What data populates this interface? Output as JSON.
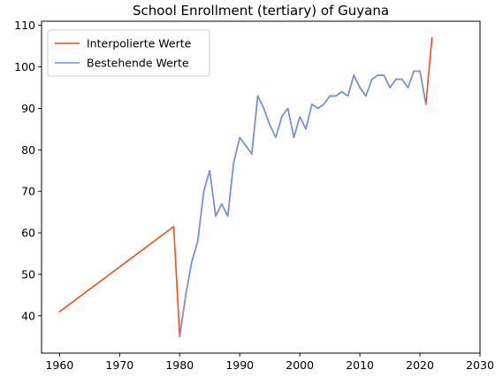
{
  "chart_data": {
    "type": "line",
    "title": "School Enrollment (tertiary) of Guyana",
    "xlabel": "",
    "ylabel": "",
    "xlim": [
      1957,
      2030
    ],
    "ylim": [
      31,
      111
    ],
    "xticks": [
      1960,
      1970,
      1980,
      1990,
      2000,
      2010,
      2020,
      2030
    ],
    "yticks": [
      40,
      50,
      60,
      70,
      80,
      90,
      100,
      110
    ],
    "grid": false,
    "legend_position": "upper left",
    "series": [
      {
        "name": "Interpolierte Werte",
        "color": "#f04e1a",
        "x": [
          1960,
          1979,
          1980,
          1981,
          1982,
          1983,
          1984,
          1985,
          1986,
          1987,
          1988,
          1989,
          1990,
          1991,
          1992,
          1993,
          1994,
          1995,
          1996,
          1997,
          1998,
          1999,
          2000,
          2001,
          2002,
          2003,
          2004,
          2005,
          2006,
          2007,
          2008,
          2009,
          2010,
          2011,
          2012,
          2013,
          2014,
          2015,
          2016,
          2017,
          2018,
          2019,
          2020,
          2021,
          2022
        ],
        "y": [
          41,
          61.5,
          35,
          45,
          53,
          58,
          70,
          75,
          64,
          67,
          64,
          77,
          83,
          81,
          79,
          93,
          90,
          86,
          83,
          88,
          90,
          83,
          88,
          85,
          91,
          90,
          91,
          93,
          93,
          94,
          93,
          98,
          95,
          93,
          97,
          98,
          98,
          95,
          97,
          97,
          95,
          99,
          99,
          91,
          107
        ]
      },
      {
        "name": "Bestehende Werte",
        "color": "#6f94e0",
        "x": [
          1980,
          1981,
          1982,
          1983,
          1984,
          1985,
          1986,
          1987,
          1988,
          1989,
          1990,
          1991,
          1992,
          1993,
          1994,
          1995,
          1996,
          1997,
          1998,
          1999,
          2000,
          2001,
          2002,
          2003,
          2004,
          2005,
          2006,
          2007,
          2008,
          2009,
          2010,
          2011,
          2012,
          2013,
          2014,
          2015,
          2016,
          2017,
          2018,
          2019,
          2020,
          2021
        ],
        "y": [
          35,
          45,
          53,
          58,
          70,
          75,
          64,
          67,
          64,
          77,
          83,
          81,
          79,
          93,
          90,
          86,
          83,
          88,
          90,
          83,
          88,
          85,
          91,
          90,
          91,
          93,
          93,
          94,
          93,
          98,
          95,
          93,
          97,
          98,
          98,
          95,
          97,
          97,
          95,
          99,
          99,
          91
        ]
      }
    ]
  }
}
